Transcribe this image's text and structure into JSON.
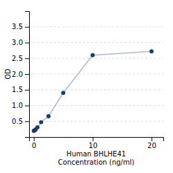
{
  "chart_data": {
    "type": "line",
    "x": [
      0,
      0.156,
      0.313,
      0.625,
      1.25,
      2.5,
      5,
      10,
      20
    ],
    "values": [
      0.197,
      0.21,
      0.24,
      0.31,
      0.47,
      0.66,
      1.4,
      2.6,
      2.72
    ],
    "color": "#1a3a6b",
    "marker": "circle",
    "xlabel": "Human BHLHE41\nConcentration (ng/ml)",
    "ylabel": "OD",
    "xlim": [
      -0.8,
      22
    ],
    "ylim": [
      0.0,
      4.0
    ],
    "xticks": [
      0,
      10,
      20
    ],
    "yticks": [
      0.5,
      {
        "value": 1.0,
        "label": "1.0"
      },
      1.5,
      {
        "value": 2.0,
        "label": "2.0"
      },
      2.5,
      {
        "value": 3.0,
        "label": "3.0"
      },
      3.5
    ],
    "grid": true
  }
}
